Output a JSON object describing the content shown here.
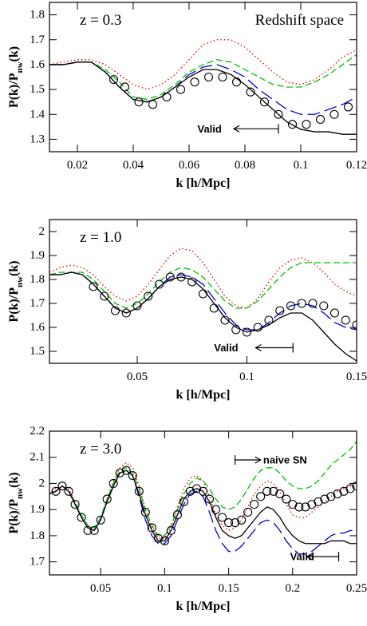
{
  "chart_data": [
    {
      "type": "line",
      "title": "z = 0.3",
      "subtitle": "Redshift space",
      "xlabel": "k [h/Mpc]",
      "ylabel": [
        "P(k)/P",
        "nw",
        "(k)"
      ],
      "xlim": [
        0.01,
        0.12
      ],
      "ylim": [
        1.25,
        1.85
      ],
      "xticks": [
        0.02,
        0.04,
        0.06,
        0.08,
        0.1,
        0.12
      ],
      "yticks": [
        1.3,
        1.4,
        1.5,
        1.6,
        1.7,
        1.8
      ],
      "x": [
        0.01,
        0.015,
        0.02,
        0.025,
        0.03,
        0.035,
        0.04,
        0.045,
        0.05,
        0.055,
        0.06,
        0.065,
        0.07,
        0.075,
        0.08,
        0.085,
        0.09,
        0.095,
        0.1,
        0.105,
        0.11,
        0.115,
        0.12
      ],
      "series": [
        {
          "color": "#e00000",
          "style": "dotted",
          "values": [
            1.6,
            1.61,
            1.62,
            1.62,
            1.6,
            1.56,
            1.52,
            1.5,
            1.52,
            1.56,
            1.62,
            1.68,
            1.7,
            1.7,
            1.67,
            1.62,
            1.57,
            1.53,
            1.52,
            1.54,
            1.58,
            1.63,
            1.66
          ]
        },
        {
          "color": "#00c000",
          "style": "dashed",
          "values": [
            1.6,
            1.6,
            1.61,
            1.61,
            1.58,
            1.53,
            1.47,
            1.46,
            1.48,
            1.52,
            1.57,
            1.6,
            1.62,
            1.61,
            1.58,
            1.55,
            1.52,
            1.51,
            1.51,
            1.53,
            1.56,
            1.6,
            1.64
          ]
        },
        {
          "color": "#0000d0",
          "style": "longdash",
          "values": [
            1.6,
            1.6,
            1.61,
            1.61,
            1.57,
            1.51,
            1.46,
            1.45,
            1.47,
            1.51,
            1.56,
            1.59,
            1.6,
            1.58,
            1.55,
            1.5,
            1.46,
            1.42,
            1.4,
            1.4,
            1.42,
            1.44,
            1.47
          ]
        },
        {
          "color": "#000000",
          "style": "solid",
          "values": [
            1.6,
            1.6,
            1.61,
            1.61,
            1.57,
            1.51,
            1.46,
            1.45,
            1.47,
            1.51,
            1.55,
            1.58,
            1.58,
            1.56,
            1.52,
            1.47,
            1.42,
            1.37,
            1.34,
            1.33,
            1.33,
            1.32,
            1.32
          ]
        },
        {
          "color": "#000000",
          "marker": "circle",
          "x": [
            0.033,
            0.037,
            0.042,
            0.047,
            0.052,
            0.057,
            0.062,
            0.067,
            0.072,
            0.077,
            0.082,
            0.087,
            0.092,
            0.097,
            0.102,
            0.107,
            0.112,
            0.117
          ],
          "values": [
            1.54,
            1.51,
            1.45,
            1.44,
            1.47,
            1.5,
            1.53,
            1.55,
            1.55,
            1.53,
            1.49,
            1.45,
            1.4,
            1.36,
            1.36,
            1.38,
            1.4,
            1.43
          ]
        }
      ],
      "annotations": [
        {
          "text": "Valid",
          "x": 0.063,
          "y": 1.342,
          "arrow": [
            0.092,
            0.076
          ]
        }
      ]
    },
    {
      "type": "line",
      "title": "z = 1.0",
      "xlabel": "k [h/Mpc]",
      "ylabel": [
        "P(k)/P",
        "nw",
        "(k)"
      ],
      "xlim": [
        0.01,
        0.15
      ],
      "ylim": [
        1.45,
        2.05
      ],
      "xticks": [
        0.05,
        0.1,
        0.15
      ],
      "yticks": [
        1.5,
        1.6,
        1.7,
        1.8,
        1.9,
        2
      ],
      "x": [
        0.01,
        0.015,
        0.02,
        0.025,
        0.03,
        0.035,
        0.04,
        0.045,
        0.05,
        0.055,
        0.06,
        0.065,
        0.07,
        0.075,
        0.08,
        0.085,
        0.09,
        0.095,
        0.1,
        0.105,
        0.11,
        0.115,
        0.12,
        0.125,
        0.13,
        0.135,
        0.14,
        0.145,
        0.15
      ],
      "series": [
        {
          "color": "#e00000",
          "style": "dotted",
          "values": [
            1.83,
            1.85,
            1.86,
            1.85,
            1.82,
            1.77,
            1.73,
            1.71,
            1.73,
            1.78,
            1.84,
            1.9,
            1.93,
            1.92,
            1.87,
            1.8,
            1.73,
            1.69,
            1.68,
            1.72,
            1.79,
            1.85,
            1.88,
            1.89,
            1.87,
            1.83,
            1.78,
            1.75,
            1.73
          ]
        },
        {
          "color": "#00c000",
          "style": "dashed",
          "values": [
            1.82,
            1.83,
            1.83,
            1.83,
            1.8,
            1.75,
            1.7,
            1.68,
            1.7,
            1.74,
            1.79,
            1.83,
            1.85,
            1.84,
            1.81,
            1.76,
            1.71,
            1.68,
            1.68,
            1.71,
            1.76,
            1.81,
            1.85,
            1.87,
            1.87,
            1.87,
            1.87,
            1.87,
            1.87
          ]
        },
        {
          "color": "#0000d0",
          "style": "longdash",
          "values": [
            1.82,
            1.82,
            1.83,
            1.82,
            1.78,
            1.73,
            1.68,
            1.66,
            1.68,
            1.72,
            1.77,
            1.81,
            1.82,
            1.81,
            1.78,
            1.72,
            1.66,
            1.61,
            1.59,
            1.59,
            1.62,
            1.66,
            1.69,
            1.7,
            1.69,
            1.66,
            1.62,
            1.6,
            1.59
          ]
        },
        {
          "color": "#000000",
          "style": "solid",
          "values": [
            1.82,
            1.82,
            1.83,
            1.82,
            1.78,
            1.73,
            1.68,
            1.66,
            1.68,
            1.72,
            1.77,
            1.8,
            1.81,
            1.8,
            1.76,
            1.7,
            1.64,
            1.6,
            1.58,
            1.59,
            1.61,
            1.64,
            1.66,
            1.66,
            1.63,
            1.58,
            1.53,
            1.49,
            1.46
          ]
        },
        {
          "color": "#000000",
          "marker": "circle",
          "x": [
            0.03,
            0.035,
            0.04,
            0.045,
            0.05,
            0.055,
            0.06,
            0.065,
            0.07,
            0.075,
            0.08,
            0.085,
            0.09,
            0.095,
            0.1,
            0.105,
            0.11,
            0.115,
            0.12,
            0.125,
            0.13,
            0.135,
            0.14,
            0.145,
            0.15
          ],
          "values": [
            1.77,
            1.73,
            1.67,
            1.66,
            1.69,
            1.73,
            1.78,
            1.81,
            1.81,
            1.79,
            1.74,
            1.68,
            1.63,
            1.59,
            1.58,
            1.6,
            1.63,
            1.67,
            1.69,
            1.7,
            1.7,
            1.69,
            1.66,
            1.63,
            1.61
          ]
        }
      ],
      "annotations": [
        {
          "text": "Valid",
          "x": 0.085,
          "y": 1.515,
          "arrow": [
            0.121,
            0.104
          ]
        }
      ]
    },
    {
      "type": "line",
      "title": "z = 3.0",
      "xlabel": "k [h/Mpc]",
      "ylabel": [
        "P(k)/P",
        "nw",
        "(k)"
      ],
      "xlim": [
        0.01,
        0.25
      ],
      "ylim": [
        1.65,
        2.2
      ],
      "xticks": [
        0.05,
        0.1,
        0.15,
        0.2,
        0.25
      ],
      "yticks": [
        1.7,
        1.8,
        1.9,
        2,
        2.1,
        2.2
      ],
      "x": [
        0.01,
        0.015,
        0.02,
        0.025,
        0.03,
        0.035,
        0.04,
        0.045,
        0.05,
        0.055,
        0.06,
        0.065,
        0.07,
        0.075,
        0.08,
        0.085,
        0.09,
        0.095,
        0.1,
        0.105,
        0.11,
        0.115,
        0.12,
        0.125,
        0.13,
        0.135,
        0.14,
        0.145,
        0.15,
        0.155,
        0.16,
        0.165,
        0.17,
        0.175,
        0.18,
        0.185,
        0.19,
        0.195,
        0.2,
        0.205,
        0.21,
        0.215,
        0.22,
        0.225,
        0.23,
        0.235,
        0.24,
        0.245,
        0.25
      ],
      "series": [
        {
          "color": "#e00000",
          "style": "dotted",
          "values": [
            1.96,
            1.98,
            1.99,
            1.98,
            1.93,
            1.87,
            1.83,
            1.82,
            1.86,
            1.94,
            2.01,
            2.06,
            2.08,
            2.06,
            1.99,
            1.9,
            1.83,
            1.79,
            1.79,
            1.83,
            1.91,
            1.98,
            2.02,
            2.03,
            2.01,
            1.95,
            1.88,
            1.84,
            1.82,
            1.83,
            1.86,
            1.91,
            1.96,
            1.99,
            2.01,
            2.0,
            1.97,
            1.92,
            1.88,
            1.87,
            1.87,
            1.89,
            1.91,
            1.93,
            1.95,
            1.97,
            1.98,
            1.99,
            1.99
          ]
        },
        {
          "color": "#00c000",
          "style": "dashed",
          "values": [
            1.96,
            1.97,
            1.99,
            1.97,
            1.93,
            1.88,
            1.84,
            1.83,
            1.87,
            1.94,
            2.0,
            2.05,
            2.06,
            2.04,
            1.98,
            1.9,
            1.84,
            1.8,
            1.8,
            1.84,
            1.9,
            1.96,
            2.0,
            2.02,
            2.01,
            1.98,
            1.94,
            1.91,
            1.9,
            1.91,
            1.94,
            1.98,
            2.02,
            2.05,
            2.06,
            2.06,
            2.04,
            2.01,
            1.99,
            1.98,
            1.98,
            1.99,
            2.01,
            2.04,
            2.07,
            2.09,
            2.11,
            2.13,
            2.16
          ]
        },
        {
          "color": "#0000d0",
          "style": "longdash",
          "values": [
            1.96,
            1.97,
            1.99,
            1.97,
            1.92,
            1.87,
            1.83,
            1.82,
            1.86,
            1.93,
            1.99,
            2.04,
            2.05,
            2.03,
            1.95,
            1.86,
            1.8,
            1.77,
            1.77,
            1.8,
            1.86,
            1.92,
            1.96,
            1.97,
            1.95,
            1.89,
            1.82,
            1.77,
            1.74,
            1.74,
            1.76,
            1.79,
            1.82,
            1.85,
            1.86,
            1.85,
            1.82,
            1.78,
            1.75,
            1.73,
            1.73,
            1.74,
            1.76,
            1.78,
            1.8,
            1.81,
            1.81,
            1.82,
            1.82
          ]
        },
        {
          "color": "#000000",
          "style": "solid",
          "values": [
            1.96,
            1.97,
            1.99,
            1.97,
            1.92,
            1.87,
            1.83,
            1.82,
            1.86,
            1.93,
            1.99,
            2.04,
            2.05,
            2.03,
            1.96,
            1.88,
            1.82,
            1.78,
            1.78,
            1.82,
            1.88,
            1.94,
            1.97,
            1.98,
            1.97,
            1.93,
            1.87,
            1.82,
            1.8,
            1.79,
            1.8,
            1.83,
            1.86,
            1.89,
            1.91,
            1.9,
            1.87,
            1.83,
            1.8,
            1.78,
            1.77,
            1.77,
            1.77,
            1.77,
            1.78,
            1.78,
            1.78,
            1.77,
            1.77
          ]
        },
        {
          "color": "#000000",
          "marker": "circle",
          "x": [
            0.015,
            0.02,
            0.025,
            0.03,
            0.035,
            0.04,
            0.045,
            0.05,
            0.055,
            0.06,
            0.065,
            0.07,
            0.075,
            0.08,
            0.085,
            0.09,
            0.095,
            0.1,
            0.105,
            0.11,
            0.115,
            0.12,
            0.125,
            0.13,
            0.135,
            0.14,
            0.145,
            0.15,
            0.155,
            0.16,
            0.165,
            0.17,
            0.175,
            0.18,
            0.185,
            0.19,
            0.195,
            0.2,
            0.205,
            0.21,
            0.215,
            0.22,
            0.225,
            0.23,
            0.235,
            0.24,
            0.245,
            0.25
          ],
          "values": [
            1.97,
            1.99,
            1.97,
            1.92,
            1.87,
            1.82,
            1.82,
            1.86,
            1.94,
            2.0,
            2.04,
            2.05,
            2.03,
            1.97,
            1.89,
            1.83,
            1.79,
            1.78,
            1.82,
            1.88,
            1.93,
            1.97,
            1.98,
            1.97,
            1.94,
            1.9,
            1.87,
            1.85,
            1.85,
            1.86,
            1.89,
            1.92,
            1.95,
            1.97,
            1.97,
            1.96,
            1.94,
            1.92,
            1.91,
            1.91,
            1.92,
            1.93,
            1.94,
            1.95,
            1.96,
            1.97,
            1.98,
            1.99
          ]
        }
      ],
      "annotations": [
        {
          "text": "naive SN",
          "x": 0.177,
          "y": 2.09,
          "arrow": [
            0.155,
            0.175
          ]
        },
        {
          "text": "Valid",
          "x": 0.198,
          "y": 1.72,
          "arrow": [
            0.236,
            0.211
          ]
        }
      ]
    }
  ]
}
